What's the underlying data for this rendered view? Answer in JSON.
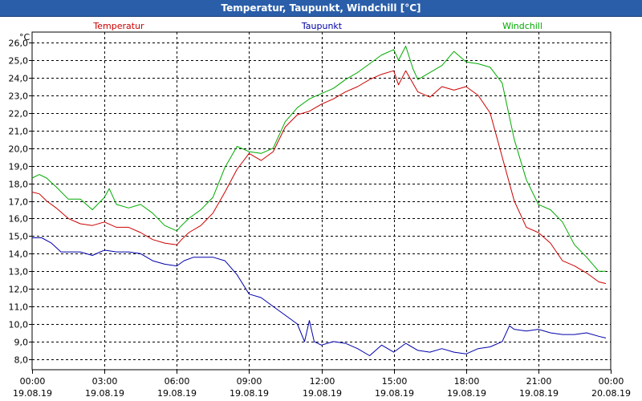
{
  "window": {
    "title": "Temperatur, Taupunkt, Windchill [°C]"
  },
  "chart_data": {
    "type": "line",
    "title": "Temperatur, Taupunkt, Windchill [°C]",
    "unit_label": "°C",
    "ylim": [
      7.4,
      26.6
    ],
    "xlim": [
      0,
      24
    ],
    "yticks": [
      "8,0",
      "9,0",
      "10,0",
      "11,0",
      "12,0",
      "13,0",
      "14,0",
      "15,0",
      "16,0",
      "17,0",
      "18,0",
      "19,0",
      "20,0",
      "21,0",
      "22,0",
      "23,0",
      "24,0",
      "25,0",
      "26,0"
    ],
    "ytick_values": [
      8,
      9,
      10,
      11,
      12,
      13,
      14,
      15,
      16,
      17,
      18,
      19,
      20,
      21,
      22,
      23,
      24,
      25,
      26
    ],
    "xticks": [
      {
        "time": "00:00",
        "date": "19.08.19"
      },
      {
        "time": "03:00",
        "date": "19.08.19"
      },
      {
        "time": "06:00",
        "date": "19.08.19"
      },
      {
        "time": "09:00",
        "date": "19.08.19"
      },
      {
        "time": "12:00",
        "date": "19.08.19"
      },
      {
        "time": "15:00",
        "date": "19.08.19"
      },
      {
        "time": "18:00",
        "date": "19.08.19"
      },
      {
        "time": "21:00",
        "date": "19.08.19"
      },
      {
        "time": "00:00",
        "date": "20.08.19"
      }
    ],
    "grid": true,
    "series": [
      {
        "name": "Temperatur",
        "color": "#cc0000",
        "x": [
          0,
          0.3,
          0.6,
          1.0,
          1.5,
          2.0,
          2.5,
          3.0,
          3.5,
          4.0,
          4.5,
          5.0,
          5.5,
          6.0,
          6.2,
          6.5,
          7.0,
          7.5,
          8.0,
          8.5,
          9.0,
          9.5,
          10.0,
          10.5,
          11.0,
          11.5,
          12.0,
          12.5,
          13.0,
          13.5,
          14.0,
          14.5,
          15.0,
          15.2,
          15.5,
          16.0,
          16.5,
          17.0,
          17.5,
          18.0,
          18.5,
          19.0,
          19.5,
          20.0,
          20.5,
          21.0,
          21.5,
          22.0,
          22.5,
          23.0,
          23.5,
          23.8
        ],
        "values": [
          17.5,
          17.4,
          17.0,
          16.6,
          16.0,
          15.7,
          15.6,
          15.8,
          15.5,
          15.5,
          15.2,
          14.8,
          14.6,
          14.5,
          14.8,
          15.2,
          15.6,
          16.3,
          17.5,
          18.8,
          19.7,
          19.3,
          19.8,
          21.2,
          21.9,
          22.1,
          22.5,
          22.8,
          23.2,
          23.5,
          23.9,
          24.2,
          24.4,
          23.6,
          24.4,
          23.2,
          22.9,
          23.5,
          23.3,
          23.5,
          23.0,
          22.0,
          19.5,
          17.0,
          15.5,
          15.2,
          14.6,
          13.6,
          13.3,
          12.9,
          12.4,
          12.3
        ]
      },
      {
        "name": "Taupunkt",
        "color": "#0000aa",
        "x": [
          0,
          0.4,
          0.8,
          1.2,
          2.0,
          2.5,
          3.0,
          3.5,
          4.0,
          4.5,
          5.0,
          5.5,
          6.0,
          6.3,
          6.7,
          7.0,
          7.5,
          8.0,
          8.5,
          9.0,
          9.5,
          10.0,
          10.5,
          11.0,
          11.3,
          11.5,
          11.7,
          12.0,
          12.5,
          13.0,
          13.5,
          14.0,
          14.5,
          15.0,
          15.5,
          16.0,
          16.5,
          17.0,
          17.5,
          18.0,
          18.5,
          19.0,
          19.5,
          19.8,
          20.0,
          20.5,
          21.0,
          21.5,
          22.0,
          22.5,
          23.0,
          23.5,
          23.8
        ],
        "values": [
          14.9,
          14.9,
          14.6,
          14.1,
          14.1,
          13.9,
          14.2,
          14.1,
          14.1,
          14.0,
          13.6,
          13.4,
          13.3,
          13.6,
          13.8,
          13.8,
          13.8,
          13.6,
          12.8,
          11.7,
          11.5,
          11.0,
          10.5,
          10.0,
          9.0,
          10.2,
          9.0,
          8.8,
          9.0,
          8.9,
          8.6,
          8.2,
          8.8,
          8.4,
          8.9,
          8.5,
          8.4,
          8.6,
          8.4,
          8.3,
          8.6,
          8.7,
          9.0,
          9.9,
          9.7,
          9.6,
          9.7,
          9.5,
          9.4,
          9.4,
          9.5,
          9.3,
          9.2
        ]
      },
      {
        "name": "Windchill",
        "color": "#00aa00",
        "x": [
          0,
          0.3,
          0.6,
          1.0,
          1.5,
          2.0,
          2.5,
          3.0,
          3.2,
          3.5,
          4.0,
          4.5,
          5.0,
          5.5,
          6.0,
          6.2,
          6.5,
          7.0,
          7.5,
          8.0,
          8.5,
          9.0,
          9.5,
          10.0,
          10.5,
          11.0,
          11.5,
          12.0,
          12.5,
          13.0,
          13.5,
          14.0,
          14.5,
          15.0,
          15.2,
          15.5,
          15.8,
          16.0,
          16.5,
          17.0,
          17.5,
          18.0,
          18.5,
          19.0,
          19.5,
          20.0,
          20.5,
          21.0,
          21.5,
          22.0,
          22.5,
          23.0,
          23.5,
          23.8
        ],
        "values": [
          18.3,
          18.5,
          18.3,
          17.8,
          17.1,
          17.1,
          16.5,
          17.2,
          17.7,
          16.8,
          16.6,
          16.8,
          16.3,
          15.6,
          15.3,
          15.6,
          16.0,
          16.5,
          17.2,
          18.9,
          20.1,
          19.8,
          19.7,
          20.0,
          21.5,
          22.3,
          22.8,
          23.1,
          23.4,
          23.9,
          24.3,
          24.8,
          25.3,
          25.6,
          25.0,
          25.8,
          24.5,
          23.9,
          24.3,
          24.7,
          25.5,
          24.9,
          24.8,
          24.6,
          23.7,
          20.5,
          18.2,
          16.8,
          16.5,
          15.8,
          14.5,
          13.8,
          13.0,
          13.0
        ]
      }
    ]
  }
}
